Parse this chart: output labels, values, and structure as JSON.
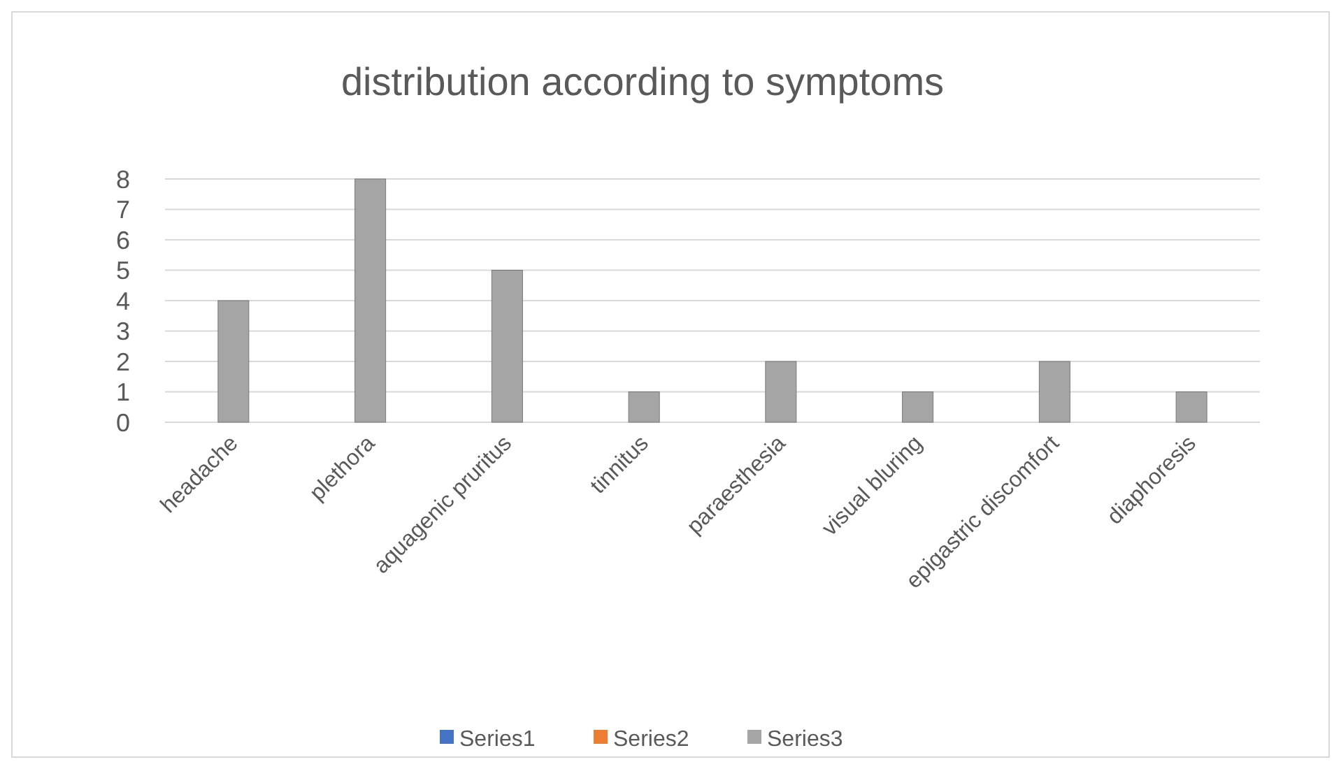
{
  "chart_data": {
    "type": "bar",
    "title": "distribution according to symptoms",
    "categories": [
      "headache",
      "plethora",
      "aquagenic pruritus",
      "tinnitus",
      "paraesthesia",
      "visual bluring",
      "epigastric discomfort",
      "diaphoresis"
    ],
    "series": [
      {
        "name": "Series1",
        "color": "#4472c4",
        "values": [
          null,
          null,
          null,
          null,
          null,
          null,
          null,
          null
        ]
      },
      {
        "name": "Series2",
        "color": "#ed7d31",
        "values": [
          null,
          null,
          null,
          null,
          null,
          null,
          null,
          null
        ]
      },
      {
        "name": "Series3",
        "color": "#a5a5a5",
        "values": [
          4,
          8,
          5,
          1,
          2,
          1,
          2,
          1
        ]
      }
    ],
    "ylim": [
      0,
      8
    ],
    "yticks": [
      0,
      1,
      2,
      3,
      4,
      5,
      6,
      7,
      8
    ],
    "grid": "y",
    "legend": "bottom"
  }
}
